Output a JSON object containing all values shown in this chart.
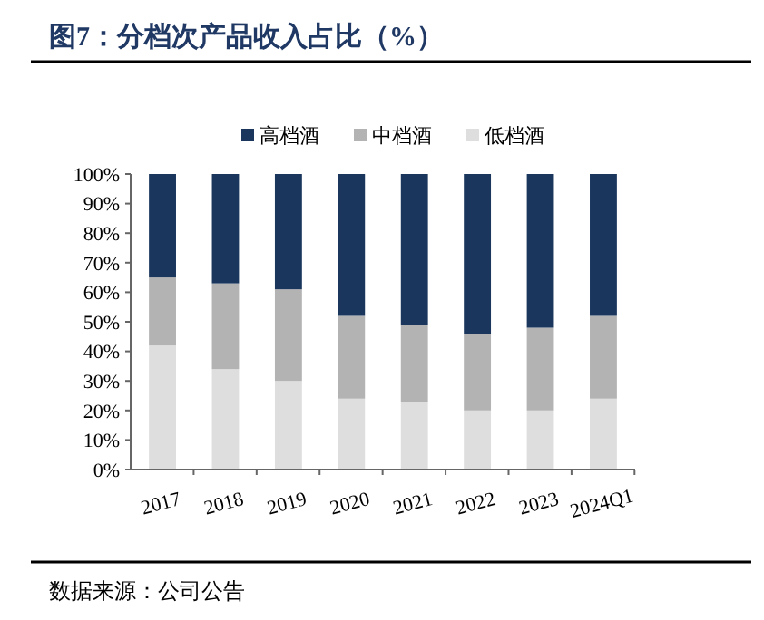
{
  "chart_data": {
    "type": "bar",
    "title": "图7：分档次产品收入占比（%）",
    "categories": [
      "2017",
      "2018",
      "2019",
      "2020",
      "2021",
      "2022",
      "2023",
      "2024Q1"
    ],
    "stacked": true,
    "legend": "top",
    "series": [
      {
        "name": "低档酒",
        "color": "#dedede",
        "values": [
          42,
          34,
          30,
          24,
          23,
          20,
          20,
          24
        ]
      },
      {
        "name": "中档酒",
        "color": "#b3b3b3",
        "values": [
          23,
          29,
          31,
          28,
          26,
          26,
          28,
          28
        ]
      },
      {
        "name": "高档酒",
        "color": "#1a365d",
        "values": [
          35,
          37,
          39,
          48,
          51,
          54,
          52,
          48
        ]
      }
    ],
    "ylim": [
      0,
      100
    ],
    "yticks": [
      {
        "value": 0,
        "label": "0%"
      },
      {
        "value": 10,
        "label": "10%"
      },
      {
        "value": 20,
        "label": "20%"
      },
      {
        "value": 30,
        "label": "30%"
      },
      {
        "value": 40,
        "label": "40%"
      },
      {
        "value": 50,
        "label": "50%"
      },
      {
        "value": 60,
        "label": "60%"
      },
      {
        "value": 70,
        "label": "70%"
      },
      {
        "value": 80,
        "label": "80%"
      },
      {
        "value": 90,
        "label": "90%"
      },
      {
        "value": 100,
        "label": "100%"
      }
    ],
    "annotations": [
      "数据来源：公司公告"
    ]
  }
}
